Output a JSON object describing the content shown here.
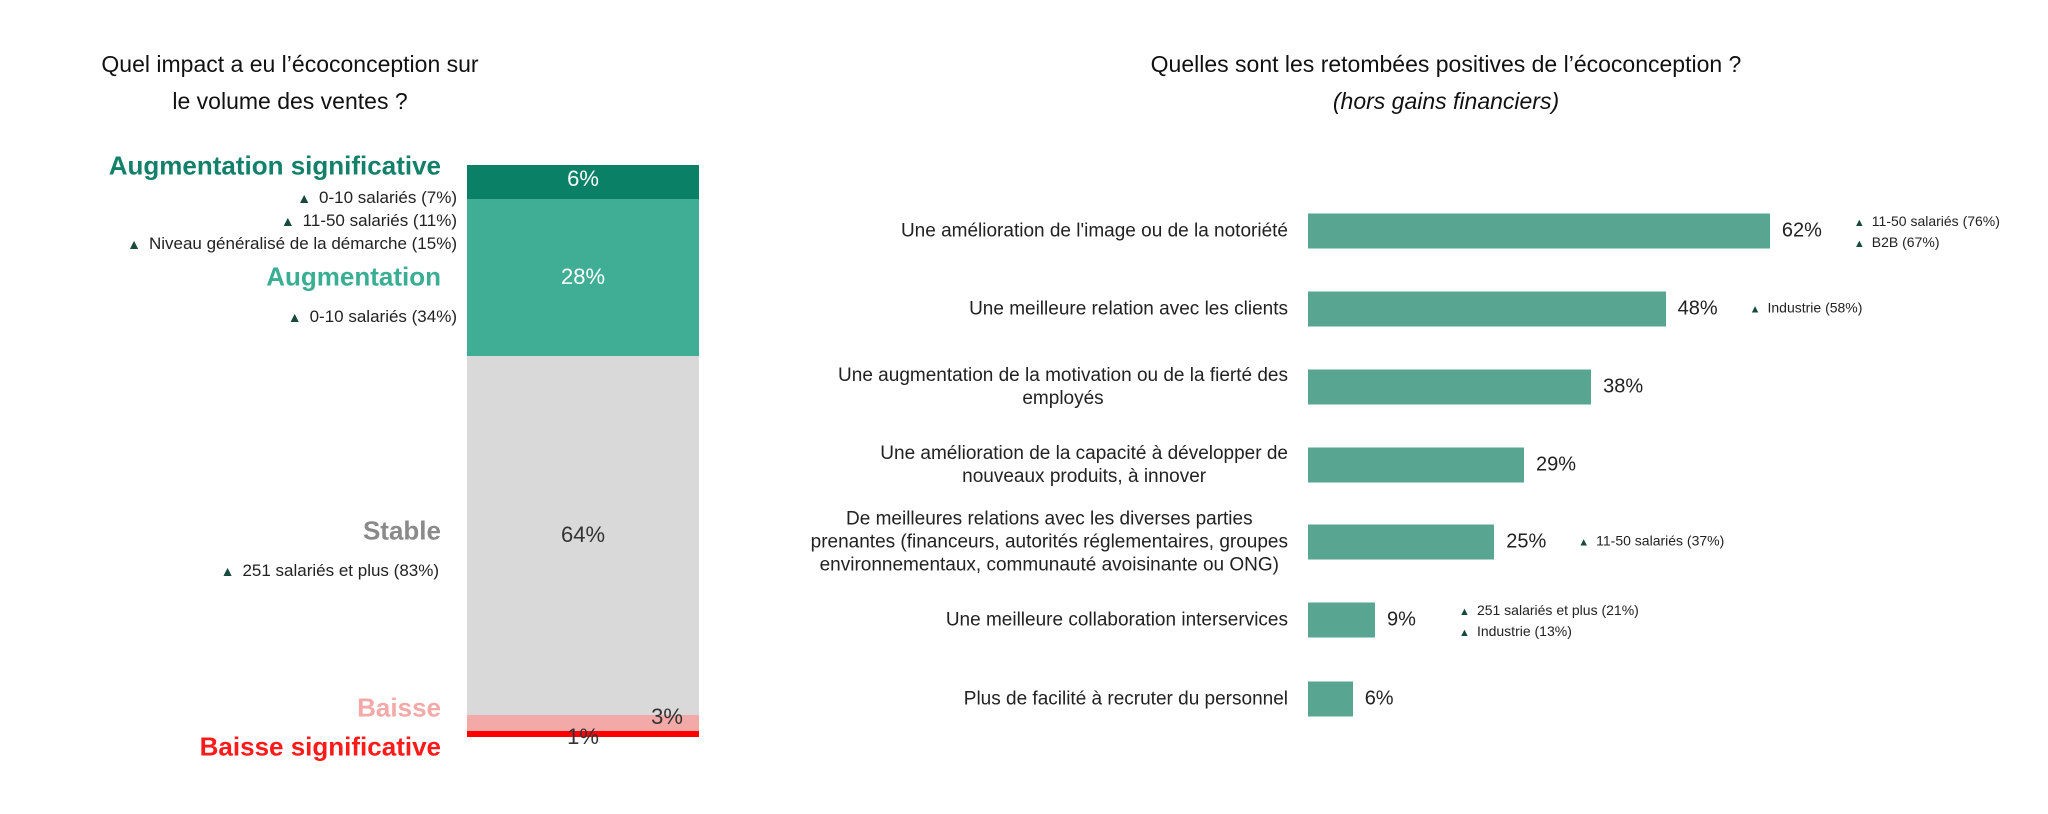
{
  "chart_data": [
    {
      "type": "bar",
      "stacked": true,
      "title": [
        "Quel impact a eu l’écoconception sur",
        "le volume des ventes ?"
      ],
      "categories": [
        "Augmentation significative",
        "Augmentation",
        "Stable",
        "Baisse",
        "Baisse significative"
      ],
      "values": [
        6,
        28,
        64,
        3,
        1
      ],
      "value_labels": [
        "6%",
        "28%",
        "64%",
        "3%",
        "1%"
      ],
      "colors": [
        "#0a8166",
        "#3fae94",
        "#d9d9d9",
        "#f4a9a9",
        "#ff0000"
      ],
      "label_colors": [
        "#13806a",
        "#3aae93",
        "#8a8a8a",
        "#f4a9a9",
        "#ff1a1a"
      ],
      "notes": [
        [
          "0-10 salariés (7%)",
          "11-50 salariés (11%)",
          "Niveau généralisé de la démarche (15%)"
        ],
        [
          "0-10 salariés (34%)"
        ],
        [
          "251 salariés et plus (83%)"
        ],
        [],
        []
      ],
      "note_icon": "triangle-up-icon"
    },
    {
      "type": "bar",
      "orientation": "horizontal",
      "title": "Quelles sont les retombées positives de l’écoconception ?",
      "subtitle": "(hors gains financiers)",
      "categories": [
        [
          "Une amélioration de l'image ou de la notoriété"
        ],
        [
          "Une meilleure relation avec les clients"
        ],
        [
          "Une augmentation de la motivation ou de la fierté des",
          "employés"
        ],
        [
          "Une amélioration de la capacité à développer de",
          "nouveaux produits, à innover"
        ],
        [
          "De meilleures relations avec les diverses parties",
          "prenantes (financeurs, autorités réglementaires, groupes",
          "environnementaux, communauté avoisinante ou ONG)"
        ],
        [
          "Une meilleure collaboration interservices"
        ],
        [
          "Plus de facilité à recruter du personnel"
        ]
      ],
      "values": [
        62,
        48,
        38,
        29,
        25,
        9,
        6
      ],
      "value_labels": [
        "62%",
        "48%",
        "38%",
        "29%",
        "25%",
        "9%",
        "6%"
      ],
      "color": "#58a592",
      "notes": [
        [
          "11-50 salariés (76%)",
          "B2B (67%)"
        ],
        [
          "Industrie (58%)"
        ],
        [],
        [],
        [
          "11-50 salariés (37%)"
        ],
        [
          "251 salariés et plus (21%)",
          "Industrie (13%)"
        ],
        []
      ],
      "xlim": [
        0,
        100
      ]
    }
  ]
}
